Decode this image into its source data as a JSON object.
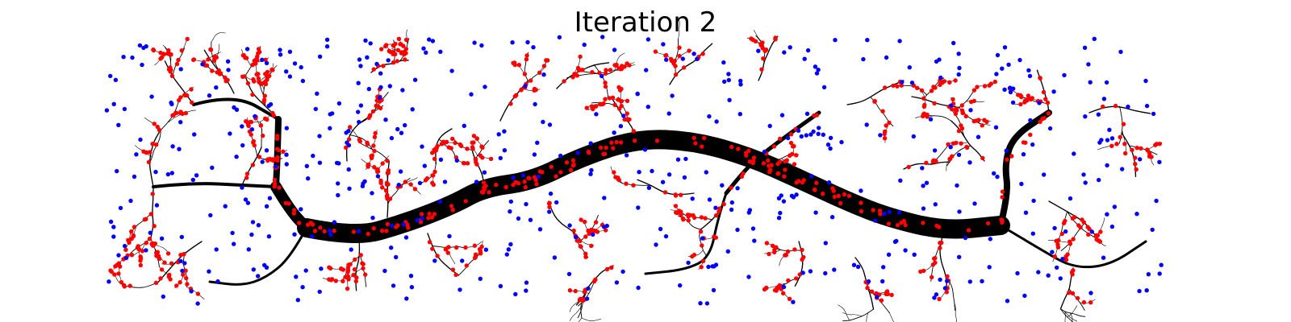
{
  "title": "Iteration 2",
  "colors": {
    "background": "#ffffff",
    "edge": "#000000",
    "node_on_tree": "#ff0000",
    "node_free": "#0000ff"
  },
  "legend": []
}
